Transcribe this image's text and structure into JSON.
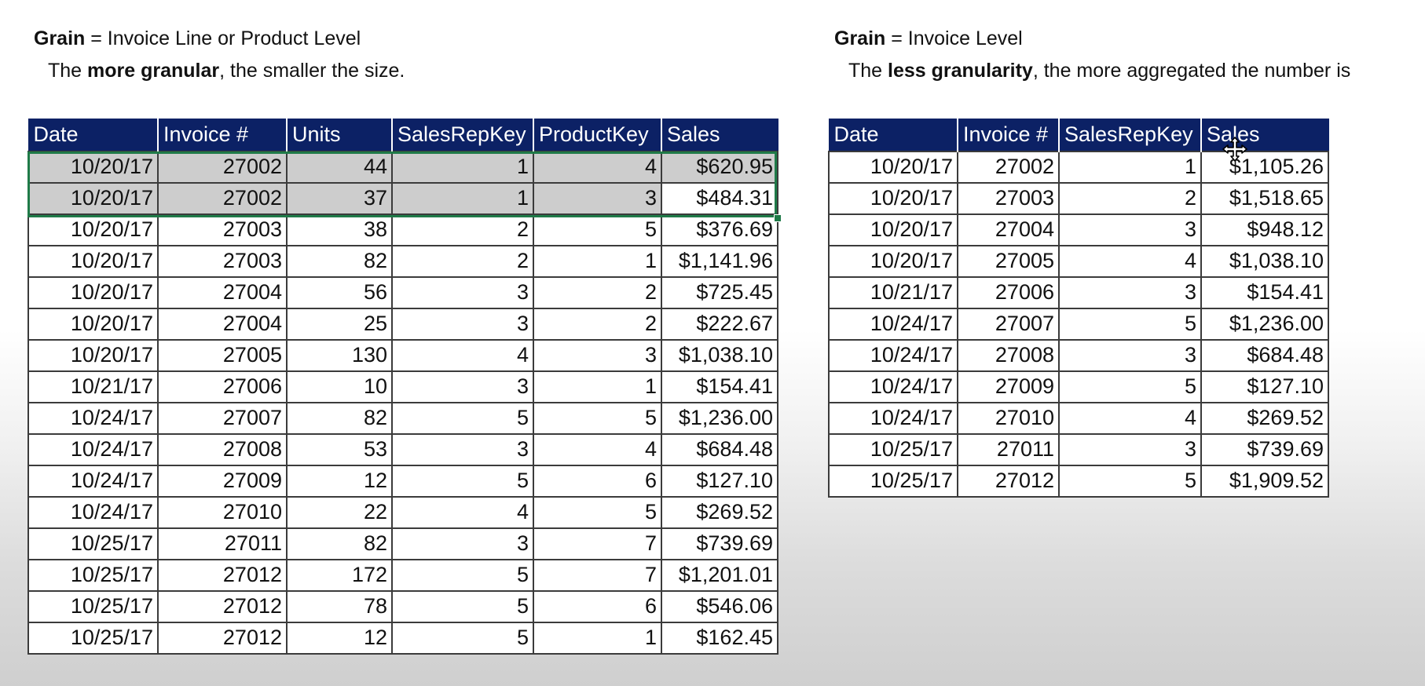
{
  "left": {
    "grain_word": "Grain",
    "grain_rest": " = Invoice Line or Product  Level",
    "note_pre": "The ",
    "note_bold": "more granular",
    "note_post": ", the smaller the size.",
    "columns": [
      "Date",
      "Invoice #",
      "Units",
      "SalesRepKey",
      "ProductKey",
      "Sales"
    ],
    "rows": [
      [
        "10/20/17",
        "27002",
        "44",
        "1",
        "4",
        "$620.95"
      ],
      [
        "10/20/17",
        "27002",
        "37",
        "1",
        "3",
        "$484.31"
      ],
      [
        "10/20/17",
        "27003",
        "38",
        "2",
        "5",
        "$376.69"
      ],
      [
        "10/20/17",
        "27003",
        "82",
        "2",
        "1",
        "$1,141.96"
      ],
      [
        "10/20/17",
        "27004",
        "56",
        "3",
        "2",
        "$725.45"
      ],
      [
        "10/20/17",
        "27004",
        "25",
        "3",
        "2",
        "$222.67"
      ],
      [
        "10/20/17",
        "27005",
        "130",
        "4",
        "3",
        "$1,038.10"
      ],
      [
        "10/21/17",
        "27006",
        "10",
        "3",
        "1",
        "$154.41"
      ],
      [
        "10/24/17",
        "27007",
        "82",
        "5",
        "5",
        "$1,236.00"
      ],
      [
        "10/24/17",
        "27008",
        "53",
        "3",
        "4",
        "$684.48"
      ],
      [
        "10/24/17",
        "27009",
        "12",
        "5",
        "6",
        "$127.10"
      ],
      [
        "10/24/17",
        "27010",
        "22",
        "4",
        "5",
        "$269.52"
      ],
      [
        "10/25/17",
        "27011",
        "82",
        "3",
        "7",
        "$739.69"
      ],
      [
        "10/25/17",
        "27012",
        "172",
        "5",
        "7",
        "$1,201.01"
      ],
      [
        "10/25/17",
        "27012",
        "78",
        "5",
        "6",
        "$546.06"
      ],
      [
        "10/25/17",
        "27012",
        "12",
        "5",
        "1",
        "$162.45"
      ]
    ]
  },
  "right": {
    "grain_word": "Grain",
    "grain_rest": " = Invoice Level",
    "note_pre": "The ",
    "note_bold": "less granularity",
    "note_post": ", the more aggregated the number is",
    "columns": [
      "Date",
      "Invoice #",
      "SalesRepKey",
      "Sales"
    ],
    "rows": [
      [
        "10/20/17",
        "27002",
        "1",
        "$1,105.26"
      ],
      [
        "10/20/17",
        "27003",
        "2",
        "$1,518.65"
      ],
      [
        "10/20/17",
        "27004",
        "3",
        "$948.12"
      ],
      [
        "10/20/17",
        "27005",
        "4",
        "$1,038.10"
      ],
      [
        "10/21/17",
        "27006",
        "3",
        "$154.41"
      ],
      [
        "10/24/17",
        "27007",
        "5",
        "$1,236.00"
      ],
      [
        "10/24/17",
        "27008",
        "3",
        "$684.48"
      ],
      [
        "10/24/17",
        "27009",
        "5",
        "$127.10"
      ],
      [
        "10/24/17",
        "27010",
        "4",
        "$269.52"
      ],
      [
        "10/25/17",
        "27011",
        "3",
        "$739.69"
      ],
      [
        "10/25/17",
        "27012",
        "5",
        "$1,909.52"
      ]
    ]
  },
  "colors": {
    "header_bg": "#0c2165",
    "selection_fill": "#cdcdcd",
    "selection_border": "#1f7a48"
  },
  "cursor": {
    "icon": "move-cursor-icon"
  }
}
